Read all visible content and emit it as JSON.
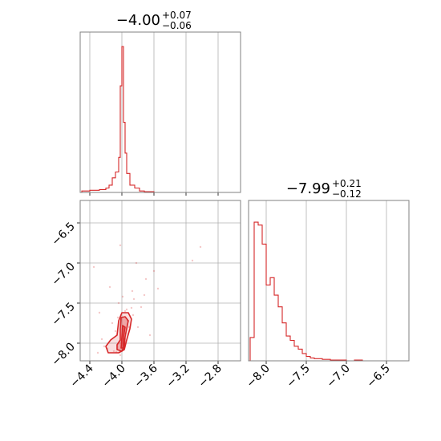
{
  "chart_data": {
    "type": "corner",
    "color": "#d62728",
    "parameters": [
      {
        "title": {
          "median": "−4.00",
          "plus": "+0.07",
          "minus": "−0.06"
        },
        "range": [
          -4.52,
          -2.52
        ],
        "ticks": [
          -4.4,
          -4.0,
          -3.6,
          -3.2,
          -2.8
        ],
        "tick_labels": [
          "−4.4",
          "−4.0",
          "−3.6",
          "−3.2",
          "−2.8"
        ]
      },
      {
        "title": {
          "median": "−7.99",
          "plus": "+0.21",
          "minus": "−0.12"
        },
        "range": [
          -8.22,
          -6.22
        ],
        "ticks": [
          -8.0,
          -7.5,
          -7.0,
          -6.5
        ],
        "tick_labels": [
          "−8.0",
          "−7.5",
          "−7.0",
          "−6.5"
        ]
      }
    ],
    "hist_1d": [
      {
        "bins": [
          [
            -4.5,
            -4.4,
            0.01
          ],
          [
            -4.4,
            -4.28,
            0.015
          ],
          [
            -4.28,
            -4.2,
            0.02
          ],
          [
            -4.2,
            -4.16,
            0.03
          ],
          [
            -4.16,
            -4.12,
            0.05
          ],
          [
            -4.12,
            -4.08,
            0.1
          ],
          [
            -4.08,
            -4.04,
            0.14
          ],
          [
            -4.04,
            -4.02,
            0.24
          ],
          [
            -4.02,
            -4.0,
            0.73
          ],
          [
            -4.0,
            -3.98,
            1.0
          ],
          [
            -3.98,
            -3.96,
            0.48
          ],
          [
            -3.96,
            -3.94,
            0.27
          ],
          [
            -3.94,
            -3.9,
            0.13
          ],
          [
            -3.9,
            -3.84,
            0.05
          ],
          [
            -3.84,
            -3.78,
            0.03
          ],
          [
            -3.78,
            -3.72,
            0.01
          ],
          [
            -3.72,
            -3.6,
            0.005
          ]
        ]
      },
      {
        "bins": [
          [
            -8.2,
            -8.15,
            0.16
          ],
          [
            -8.15,
            -8.1,
            0.95
          ],
          [
            -8.1,
            -8.05,
            0.93
          ],
          [
            -8.05,
            -8.0,
            0.8
          ],
          [
            -8.0,
            -7.95,
            0.52
          ],
          [
            -7.95,
            -7.9,
            0.57
          ],
          [
            -7.9,
            -7.85,
            0.45
          ],
          [
            -7.85,
            -7.8,
            0.37
          ],
          [
            -7.8,
            -7.75,
            0.26
          ],
          [
            -7.75,
            -7.7,
            0.17
          ],
          [
            -7.7,
            -7.65,
            0.14
          ],
          [
            -7.65,
            -7.6,
            0.1
          ],
          [
            -7.6,
            -7.55,
            0.08
          ],
          [
            -7.55,
            -7.5,
            0.05
          ],
          [
            -7.5,
            -7.45,
            0.03
          ],
          [
            -7.45,
            -7.4,
            0.02
          ],
          [
            -7.4,
            -7.3,
            0.015
          ],
          [
            -7.3,
            -7.2,
            0.01
          ],
          [
            -7.2,
            -7.0,
            0.005
          ],
          [
            -7.0,
            -6.9,
            0.0
          ],
          [
            -6.9,
            -6.8,
            0.005
          ],
          [
            -6.8,
            -6.22,
            0.0
          ]
        ]
      }
    ],
    "scatter_2d": [
      [
        -4.02,
        -8.15
      ],
      [
        -4.07,
        -8.11
      ],
      [
        -3.93,
        -7.72
      ],
      [
        -3.96,
        -7.6
      ],
      [
        -3.88,
        -7.56
      ],
      [
        -3.85,
        -7.45
      ],
      [
        -4.18,
        -8.07
      ],
      [
        -4.22,
        -8.04
      ],
      [
        -3.98,
        -7.95
      ],
      [
        -3.91,
        -7.8
      ],
      [
        -4.04,
        -7.5
      ],
      [
        -3.7,
        -7.2
      ],
      [
        -4.02,
        -6.78
      ],
      [
        -3.82,
        -7.0
      ],
      [
        -3.72,
        -7.4
      ],
      [
        -4.35,
        -7.05
      ],
      [
        -4.12,
        -7.75
      ],
      [
        -3.55,
        -7.32
      ],
      [
        -3.02,
        -6.8
      ],
      [
        -3.12,
        -6.97
      ],
      [
        -4.25,
        -7.95
      ],
      [
        -3.94,
        -7.58
      ],
      [
        -3.86,
        -7.65
      ],
      [
        -4.08,
        -7.85
      ],
      [
        -4.1,
        -8.1
      ],
      [
        -3.99,
        -7.42
      ],
      [
        -3.87,
        -7.35
      ],
      [
        -4.3,
        -8.12
      ],
      [
        -3.76,
        -7.55
      ],
      [
        -3.65,
        -7.9
      ],
      [
        -4.15,
        -7.3
      ],
      [
        -3.6,
        -7.1
      ],
      [
        -4.05,
        -7.68
      ],
      [
        -3.96,
        -7.88
      ],
      [
        -4.28,
        -7.62
      ],
      [
        -3.8,
        -7.8
      ]
    ],
    "contours": [
      {
        "level": "outer",
        "points": [
          [
            -4.17,
            -8.12
          ],
          [
            -4.04,
            -8.12
          ],
          [
            -3.97,
            -8.08
          ],
          [
            -3.94,
            -7.96
          ],
          [
            -3.9,
            -7.82
          ],
          [
            -3.88,
            -7.7
          ],
          [
            -3.92,
            -7.62
          ],
          [
            -4.0,
            -7.62
          ],
          [
            -4.04,
            -7.72
          ],
          [
            -4.06,
            -7.9
          ],
          [
            -4.14,
            -7.96
          ],
          [
            -4.2,
            -8.04
          ]
        ]
      },
      {
        "level": "mid",
        "points": [
          [
            -4.06,
            -8.08
          ],
          [
            -4.0,
            -8.1
          ],
          [
            -3.97,
            -8.04
          ],
          [
            -3.96,
            -7.92
          ],
          [
            -3.94,
            -7.82
          ],
          [
            -3.92,
            -7.72
          ],
          [
            -3.96,
            -7.67
          ],
          [
            -4.01,
            -7.68
          ],
          [
            -4.02,
            -7.82
          ],
          [
            -4.02,
            -7.96
          ],
          [
            -4.06,
            -8.02
          ]
        ]
      },
      {
        "level": "inner",
        "points": [
          [
            -4.01,
            -8.06
          ],
          [
            -3.98,
            -8.06
          ],
          [
            -3.98,
            -7.92
          ],
          [
            -3.96,
            -7.8
          ],
          [
            -3.99,
            -7.78
          ],
          [
            -4.0,
            -7.92
          ]
        ]
      }
    ],
    "grid": true
  }
}
